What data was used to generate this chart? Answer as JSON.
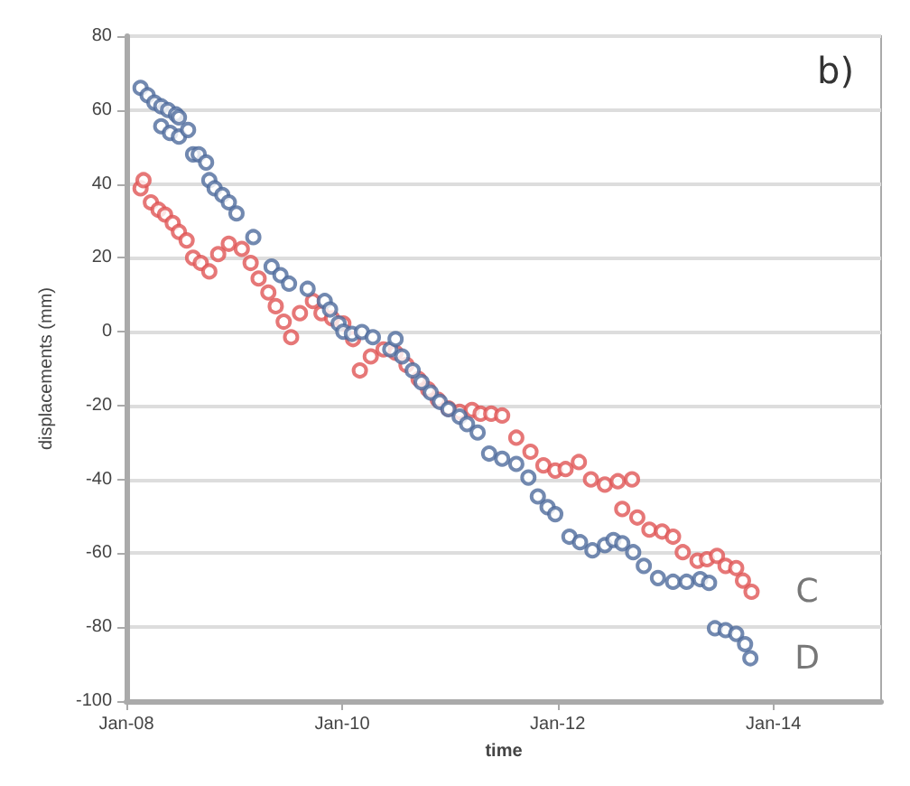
{
  "chart_data": {
    "type": "scatter",
    "title": "b)",
    "xlabel": "time",
    "ylabel": "displacements (mm)",
    "xlim": [
      "2008-01-01",
      "2015-01-01"
    ],
    "xticks": [
      {
        "value": "2008-01-01",
        "label": "Jan-08"
      },
      {
        "value": "2010-01-01",
        "label": "Jan-10"
      },
      {
        "value": "2012-01-01",
        "label": "Jan-12"
      },
      {
        "value": "2014-01-01",
        "label": "Jan-14"
      }
    ],
    "ylim": [
      -100,
      80
    ],
    "yticks": [
      -100,
      -80,
      -60,
      -40,
      -20,
      0,
      20,
      40,
      60,
      80
    ],
    "grid": "y",
    "legend": false,
    "marker": "circle",
    "series": [
      {
        "name": "C",
        "color": "#e05555",
        "x": [
          "2008-02-18",
          "2008-02-28",
          "2008-03-24",
          "2008-04-19",
          "2008-05-11",
          "2008-06-06",
          "2008-06-27",
          "2008-07-23",
          "2008-08-14",
          "2008-09-09",
          "2008-10-08",
          "2008-11-07",
          "2008-12-13",
          "2009-01-26",
          "2009-02-25",
          "2009-03-24",
          "2009-04-26",
          "2009-05-21",
          "2009-06-17",
          "2009-07-12",
          "2009-08-11",
          "2009-09-24",
          "2009-10-23",
          "2009-11-28",
          "2010-01-05",
          "2010-02-07",
          "2010-03-02",
          "2010-04-08",
          "2010-05-21",
          "2010-07-01",
          "2010-08-07",
          "2010-09-17",
          "2010-10-19",
          "2010-11-21",
          "2010-12-27",
          "2011-02-03",
          "2011-03-17",
          "2011-04-15",
          "2011-05-21",
          "2011-06-27",
          "2011-08-14",
          "2011-10-01",
          "2011-11-14",
          "2011-12-24",
          "2012-01-28",
          "2012-03-13",
          "2012-04-23",
          "2012-06-09",
          "2012-07-23",
          "2012-08-07",
          "2012-09-09",
          "2012-09-27",
          "2012-11-07",
          "2012-12-20",
          "2013-01-26",
          "2013-02-28",
          "2013-04-19",
          "2013-05-21",
          "2013-06-24",
          "2013-07-23",
          "2013-08-28",
          "2013-09-20",
          "2013-10-19"
        ],
        "values": [
          38.8,
          41,
          35,
          33,
          31.7,
          29.4,
          27,
          24.7,
          20,
          18.6,
          16.3,
          21,
          23.8,
          22.4,
          18.6,
          14.4,
          10.6,
          6.9,
          2.7,
          -1.5,
          5,
          8.3,
          5,
          3.6,
          2.2,
          -2,
          -10.5,
          -6.7,
          -4.8,
          -5.7,
          -9,
          -12.8,
          -15.6,
          -18.4,
          -20.8,
          -21.7,
          -21.2,
          -22.2,
          -22.2,
          -22.7,
          -28.7,
          -32.5,
          -36.2,
          -37.6,
          -37.2,
          -35.3,
          -40,
          -41.4,
          -40.5,
          -48,
          -40,
          -50.3,
          -53.6,
          -54.1,
          -55.5,
          -59.7,
          -62,
          -61.6,
          -60.7,
          -63.4,
          -64,
          -67.4,
          -70.4
        ]
      },
      {
        "name": "D",
        "color": "#4f6c9c",
        "x": [
          "2008-02-18",
          "2008-03-13",
          "2008-04-05",
          "2008-04-28",
          "2008-04-28",
          "2008-05-21",
          "2008-05-28",
          "2008-06-17",
          "2008-06-27",
          "2008-06-27",
          "2008-07-28",
          "2008-08-14",
          "2008-09-02",
          "2008-09-27",
          "2008-10-08",
          "2008-10-26",
          "2008-11-21",
          "2008-12-13",
          "2009-01-08",
          "2009-03-06",
          "2009-05-07",
          "2009-06-06",
          "2009-07-05",
          "2009-09-06",
          "2009-11-03",
          "2009-11-21",
          "2009-12-20",
          "2010-01-05",
          "2010-02-03",
          "2010-03-09",
          "2010-04-15",
          "2010-06-13",
          "2010-07-01",
          "2010-07-23",
          "2010-08-28",
          "2010-09-27",
          "2010-10-28",
          "2010-11-28",
          "2010-12-27",
          "2011-02-03",
          "2011-02-28",
          "2011-04-05",
          "2011-05-14",
          "2011-06-27",
          "2011-08-14",
          "2011-09-24",
          "2011-10-26",
          "2011-11-28",
          "2011-12-24",
          "2012-02-10",
          "2012-03-17",
          "2012-04-28",
          "2012-06-09",
          "2012-07-08",
          "2012-08-07",
          "2012-09-13",
          "2012-10-19",
          "2012-12-06",
          "2013-01-26",
          "2013-03-13",
          "2013-04-28",
          "2013-05-28",
          "2013-06-17",
          "2013-07-23",
          "2013-08-28",
          "2013-09-27",
          "2013-10-15"
        ],
        "values": [
          66,
          64,
          62,
          61,
          55.6,
          60,
          53.8,
          58.8,
          52.8,
          58,
          54.6,
          48,
          48,
          45.8,
          41,
          38.8,
          37,
          35,
          32,
          25.6,
          17.6,
          15.3,
          13,
          11.6,
          8.3,
          6,
          2.2,
          0,
          -0.6,
          -0.1,
          -1.5,
          -4.8,
          -2,
          -6.7,
          -10.5,
          -13.7,
          -16.5,
          -19,
          -21,
          -23,
          -25,
          -27.3,
          -33,
          -34.4,
          -35.8,
          -39.5,
          -44.6,
          -47.5,
          -49.4,
          -55.5,
          -57,
          -59.2,
          -57.8,
          -56.4,
          -57.3,
          -59.7,
          -63.4,
          -66.7,
          -67.7,
          -67.7,
          -67,
          -68,
          -80.3,
          -80.8,
          -81.8,
          -84.6,
          -88.4
        ]
      }
    ]
  }
}
